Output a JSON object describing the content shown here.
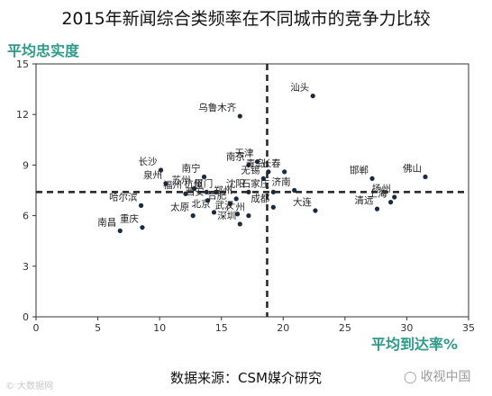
{
  "title": "2015年新闻综合类频率在不同城市的竞争力比较",
  "source": "数据来源：CSM媒介研究",
  "watermark_left": "© 大数据网",
  "watermark_right": "收视中国",
  "chart_data": {
    "type": "scatter",
    "xlabel": "平均到达率%",
    "ylabel": "平均忠实度",
    "xlim": [
      0,
      35
    ],
    "ylim": [
      0,
      15
    ],
    "xticks": [
      0,
      5,
      10,
      15,
      20,
      25,
      30,
      35
    ],
    "yticks": [
      0,
      3,
      6,
      9,
      12,
      15
    ],
    "grid": false,
    "reference_lines": {
      "x": 18.7,
      "y": 7.4
    },
    "points": [
      {
        "label": "汕头",
        "x": 22.4,
        "y": 13.1
      },
      {
        "label": "乌鲁木齐",
        "x": 16.5,
        "y": 11.9
      },
      {
        "label": "南京",
        "x": 17.2,
        "y": 9.0
      },
      {
        "label": "天津",
        "x": 17.9,
        "y": 9.2
      },
      {
        "label": "青岛",
        "x": 18.8,
        "y": 8.6
      },
      {
        "label": "长春",
        "x": 20.1,
        "y": 8.6
      },
      {
        "label": "无锡",
        "x": 18.4,
        "y": 8.2
      },
      {
        "label": "长沙",
        "x": 10.1,
        "y": 8.7
      },
      {
        "label": "南宁",
        "x": 13.6,
        "y": 8.3
      },
      {
        "label": "泉州",
        "x": 10.5,
        "y": 7.9
      },
      {
        "label": "苏州",
        "x": 12.8,
        "y": 7.6
      },
      {
        "label": "福州",
        "x": 12.1,
        "y": 7.3
      },
      {
        "label": "杭州",
        "x": 13.8,
        "y": 7.4
      },
      {
        "label": "厦门",
        "x": 14.6,
        "y": 7.4
      },
      {
        "label": "沈阳",
        "x": 17.2,
        "y": 7.4
      },
      {
        "label": "西安",
        "x": 13.9,
        "y": 6.9
      },
      {
        "label": "合肥",
        "x": 15.7,
        "y": 6.7
      },
      {
        "label": "郑州",
        "x": 16.2,
        "y": 7.0
      },
      {
        "label": "石家庄",
        "x": 19.2,
        "y": 7.4
      },
      {
        "label": "济南",
        "x": 20.9,
        "y": 7.5
      },
      {
        "label": "成都",
        "x": 19.2,
        "y": 6.5
      },
      {
        "label": "北京",
        "x": 14.4,
        "y": 6.2
      },
      {
        "label": "武汉",
        "x": 16.3,
        "y": 6.1
      },
      {
        "label": "广州",
        "x": 17.2,
        "y": 6.0
      },
      {
        "label": "太原",
        "x": 12.7,
        "y": 6.0
      },
      {
        "label": "深圳",
        "x": 16.5,
        "y": 5.5
      },
      {
        "label": "大连",
        "x": 22.6,
        "y": 6.3
      },
      {
        "label": "清远",
        "x": 27.6,
        "y": 6.4
      },
      {
        "label": "上海",
        "x": 28.7,
        "y": 6.8
      },
      {
        "label": "扬州",
        "x": 29.0,
        "y": 7.1
      },
      {
        "label": "邯郸",
        "x": 27.2,
        "y": 8.2
      },
      {
        "label": "佛山",
        "x": 31.5,
        "y": 8.3
      },
      {
        "label": "哈尔滨",
        "x": 8.5,
        "y": 6.6
      },
      {
        "label": "重庆",
        "x": 8.6,
        "y": 5.3
      },
      {
        "label": "南昌",
        "x": 6.8,
        "y": 5.1
      }
    ]
  }
}
